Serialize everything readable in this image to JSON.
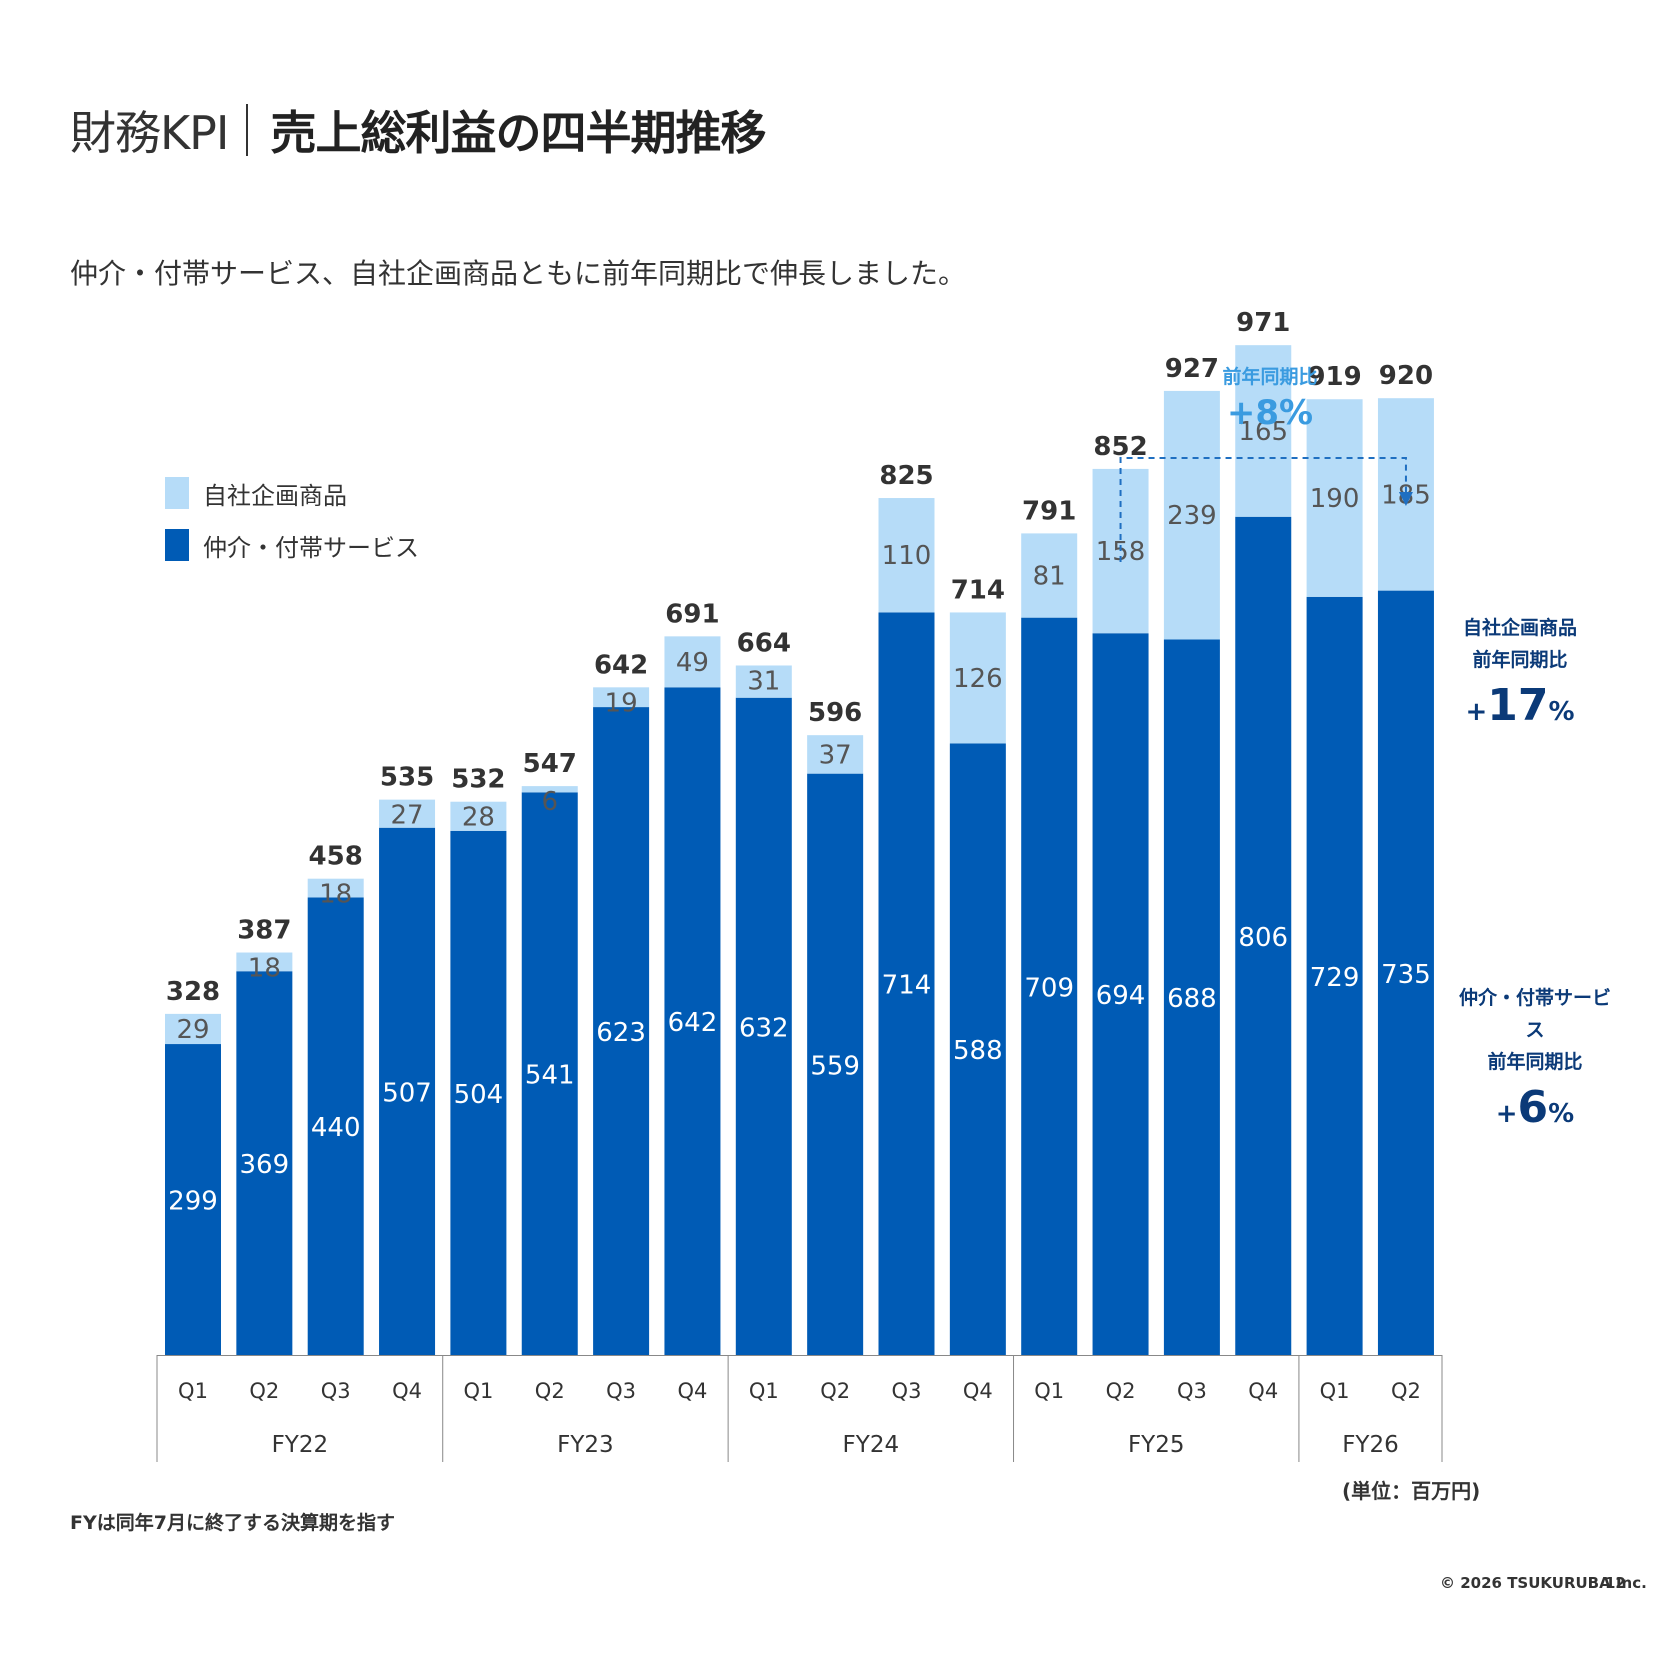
{
  "header": {
    "title_prefix": "財務KPI",
    "title_main": "売上総利益の四半期推移",
    "subtitle": "仲介・付帯サービス、自社企画商品ともに前年同期比で伸長しました。"
  },
  "legend": {
    "own_products": "自社企画商品",
    "services": "仲介・付帯サービス"
  },
  "annotations": {
    "yoy_total_label": "前年同期比",
    "yoy_total_value": "+8%",
    "own_label_1": "自社企画商品",
    "own_label_2": "前年同期比",
    "own_value_sign": "+",
    "own_value_num": "17",
    "own_value_pct": "%",
    "svc_label_1": "仲介・付帯サービス",
    "svc_label_2": "前年同期比",
    "svc_value_sign": "+",
    "svc_value_num": "6",
    "svc_value_pct": "%"
  },
  "unit": "(単位：百万円)",
  "footnote": "FYは同年7月に終了する決算期を指す",
  "copyright": "© 2026 TSUKURUBA Inc.",
  "page_number": "12",
  "colors": {
    "own_products": "#b6dcf8",
    "services": "#005bb5",
    "accent_light": "#3a9be0",
    "dark_navy": "#0b3a78"
  },
  "chart_data": {
    "type": "bar",
    "stacked": true,
    "categories": [
      "Q1",
      "Q2",
      "Q3",
      "Q4",
      "Q1",
      "Q2",
      "Q3",
      "Q4",
      "Q1",
      "Q2",
      "Q3",
      "Q4",
      "Q1",
      "Q2",
      "Q3",
      "Q4",
      "Q1",
      "Q2"
    ],
    "groups": [
      {
        "label": "FY22",
        "count": 4
      },
      {
        "label": "FY23",
        "count": 4
      },
      {
        "label": "FY24",
        "count": 4
      },
      {
        "label": "FY25",
        "count": 4
      },
      {
        "label": "FY26",
        "count": 2
      }
    ],
    "series": [
      {
        "name": "仲介・付帯サービス",
        "values": [
          299,
          369,
          440,
          507,
          504,
          541,
          623,
          642,
          632,
          559,
          714,
          588,
          709,
          694,
          688,
          806,
          729,
          735
        ]
      },
      {
        "name": "自社企画商品",
        "values": [
          29,
          18,
          18,
          27,
          28,
          6,
          19,
          49,
          31,
          37,
          110,
          126,
          81,
          158,
          239,
          165,
          190,
          185
        ]
      }
    ],
    "totals": [
      328,
      387,
      458,
      535,
      532,
      547,
      642,
      691,
      664,
      596,
      825,
      714,
      791,
      852,
      927,
      971,
      919,
      920
    ],
    "ylim": [
      0,
      1000
    ],
    "grid": false,
    "legend_position": "top-left"
  }
}
